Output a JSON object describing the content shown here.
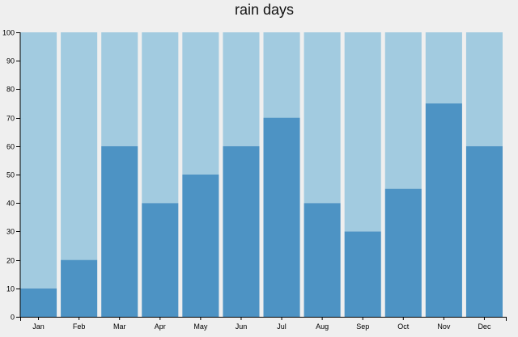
{
  "chart_data": {
    "type": "bar",
    "stacked": true,
    "title": "rain days",
    "xlabel": "",
    "ylabel": "",
    "categories": [
      "Jan",
      "Feb",
      "Mar",
      "Apr",
      "May",
      "Jun",
      "Jul",
      "Aug",
      "Sep",
      "Oct",
      "Nov",
      "Dec"
    ],
    "series": [
      {
        "values": [
          10,
          20,
          60,
          40,
          50,
          60,
          70,
          40,
          30,
          45,
          75,
          60
        ],
        "color": "#4d93c4"
      },
      {
        "values": [
          90,
          80,
          40,
          60,
          50,
          40,
          30,
          60,
          70,
          55,
          25,
          40
        ],
        "color": "#a2cbe0"
      }
    ],
    "ylim": [
      0,
      100
    ],
    "yticks": [
      0,
      10,
      20,
      30,
      40,
      50,
      60,
      70,
      80,
      90,
      100
    ],
    "grid": false,
    "legend": "none"
  }
}
